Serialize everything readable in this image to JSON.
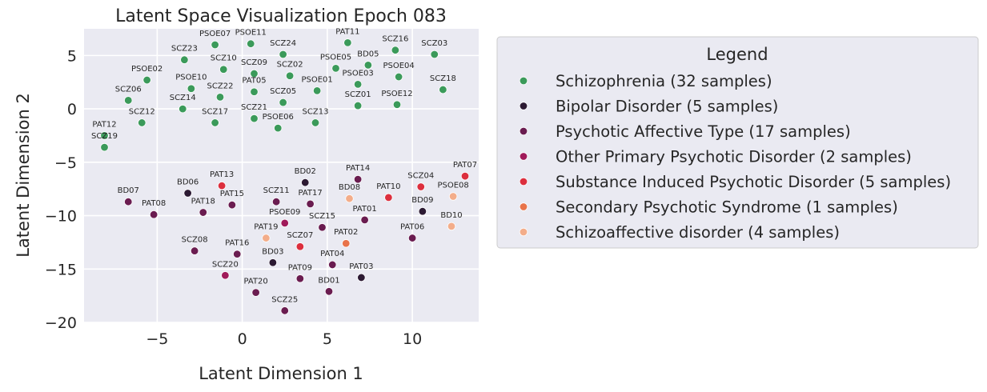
{
  "chart_data": {
    "type": "scatter",
    "title": "Latent Space Visualization Epoch 083",
    "xlabel": "Latent Dimension 1",
    "ylabel": "Latent Dimension 2",
    "xlim": [
      -9.3,
      13.9
    ],
    "ylim": [
      -20,
      7.5
    ],
    "xticks": [
      -5,
      0,
      5,
      10
    ],
    "yticks": [
      -20,
      -15,
      -10,
      -5,
      0,
      5
    ],
    "grid": true,
    "legend": {
      "title": "Legend",
      "placement": "outside-right",
      "entries": [
        {
          "label": "Schizophrenia (32 samples)",
          "color": "#3b9a5a"
        },
        {
          "label": "Bipolar Disorder (5 samples)",
          "color": "#2c1a33"
        },
        {
          "label": "Psychotic Affective Type (17 samples)",
          "color": "#6a1c50"
        },
        {
          "label": "Other Primary Psychotic Disorder (2 samples)",
          "color": "#a01a5a"
        },
        {
          "label": "Substance Induced Psychotic Disorder (5 samples)",
          "color": "#dc2f3e"
        },
        {
          "label": "Secondary Psychotic Syndrome (1 samples)",
          "color": "#e8734a"
        },
        {
          "label": "Schizoaffective disorder (4 samples)",
          "color": "#f3ad8a"
        }
      ]
    },
    "series": [
      {
        "name": "Schizophrenia (32 samples)",
        "color": "#3b9a5a",
        "points": [
          {
            "label": "PSOE07",
            "x": -1.6,
            "y": 6.0
          },
          {
            "label": "PSOE11",
            "x": 0.5,
            "y": 6.1
          },
          {
            "label": "SCZ24",
            "x": 2.4,
            "y": 5.1
          },
          {
            "label": "PAT11",
            "x": 6.2,
            "y": 6.2
          },
          {
            "label": "SCZ16",
            "x": 9.0,
            "y": 5.5
          },
          {
            "label": "SCZ03",
            "x": 11.3,
            "y": 5.1
          },
          {
            "label": "SCZ23",
            "x": -3.4,
            "y": 4.6
          },
          {
            "label": "SCZ10",
            "x": -1.1,
            "y": 3.7
          },
          {
            "label": "SCZ09",
            "x": 0.7,
            "y": 3.3
          },
          {
            "label": "SCZ02",
            "x": 2.8,
            "y": 3.1
          },
          {
            "label": "PSOE05",
            "x": 5.5,
            "y": 3.8
          },
          {
            "label": "BD05",
            "x": 7.4,
            "y": 4.1
          },
          {
            "label": "PSOE04",
            "x": 9.2,
            "y": 3.0
          },
          {
            "label": "PSOE02",
            "x": -5.6,
            "y": 2.7
          },
          {
            "label": "PSOE10",
            "x": -3.0,
            "y": 1.9
          },
          {
            "label": "SCZ22",
            "x": -1.3,
            "y": 1.1
          },
          {
            "label": "PAT05",
            "x": 0.7,
            "y": 1.6
          },
          {
            "label": "PSOE01",
            "x": 4.4,
            "y": 1.7
          },
          {
            "label": "PSOE03",
            "x": 6.8,
            "y": 2.3
          },
          {
            "label": "SCZ18",
            "x": 11.8,
            "y": 1.8
          },
          {
            "label": "SCZ06",
            "x": -6.7,
            "y": 0.8
          },
          {
            "label": "SCZ14",
            "x": -3.5,
            "y": 0.0
          },
          {
            "label": "SCZ05",
            "x": 2.4,
            "y": 0.6
          },
          {
            "label": "SCZ01",
            "x": 6.8,
            "y": 0.3
          },
          {
            "label": "PSOE12",
            "x": 9.1,
            "y": 0.4
          },
          {
            "label": "SCZ12",
            "x": -5.9,
            "y": -1.3
          },
          {
            "label": "SCZ17",
            "x": -1.6,
            "y": -1.3
          },
          {
            "label": "SCZ21",
            "x": 0.7,
            "y": -0.9
          },
          {
            "label": "PSOE06",
            "x": 2.1,
            "y": -1.8
          },
          {
            "label": "SCZ13",
            "x": 4.3,
            "y": -1.3
          },
          {
            "label": "PAT12",
            "x": -8.1,
            "y": -2.5
          },
          {
            "label": "SCZ19",
            "x": -8.1,
            "y": -3.6
          }
        ]
      },
      {
        "name": "Bipolar Disorder (5 samples)",
        "color": "#2c1a33",
        "points": [
          {
            "label": "BD06",
            "x": -3.2,
            "y": -7.9
          },
          {
            "label": "BD02",
            "x": 3.7,
            "y": -6.9
          },
          {
            "label": "BD09",
            "x": 10.6,
            "y": -9.6
          },
          {
            "label": "BD03",
            "x": 1.8,
            "y": -14.4
          },
          {
            "label": "PAT03",
            "x": 7.0,
            "y": -15.8
          }
        ]
      },
      {
        "name": "Psychotic Affective Type (17 samples)",
        "color": "#6a1c50",
        "points": [
          {
            "label": "BD07",
            "x": -6.7,
            "y": -8.7
          },
          {
            "label": "PAT08",
            "x": -5.2,
            "y": -9.9
          },
          {
            "label": "PAT18",
            "x": -2.3,
            "y": -9.7
          },
          {
            "label": "PAT15",
            "x": -0.6,
            "y": -9.0
          },
          {
            "label": "SCZ11",
            "x": 2.0,
            "y": -8.7
          },
          {
            "label": "PAT17",
            "x": 4.0,
            "y": -8.9
          },
          {
            "label": "PAT14",
            "x": 6.8,
            "y": -6.6
          },
          {
            "label": "PAT01",
            "x": 7.2,
            "y": -10.4
          },
          {
            "label": "SCZ15",
            "x": 4.7,
            "y": -11.1
          },
          {
            "label": "PAT06",
            "x": 10.0,
            "y": -12.1
          },
          {
            "label": "SCZ08",
            "x": -2.8,
            "y": -13.3
          },
          {
            "label": "PAT16",
            "x": -0.3,
            "y": -13.6
          },
          {
            "label": "PAT04",
            "x": 5.3,
            "y": -14.6
          },
          {
            "label": "PAT09",
            "x": 3.4,
            "y": -15.9
          },
          {
            "label": "BD01",
            "x": 5.1,
            "y": -17.1
          },
          {
            "label": "PAT20",
            "x": 0.8,
            "y": -17.2
          },
          {
            "label": "SCZ25",
            "x": 2.5,
            "y": -18.9
          }
        ]
      },
      {
        "name": "Other Primary Psychotic Disorder (2 samples)",
        "color": "#a01a5a",
        "points": [
          {
            "label": "PSOE09",
            "x": 2.5,
            "y": -10.7
          },
          {
            "label": "SCZ20",
            "x": -1.0,
            "y": -15.6
          }
        ]
      },
      {
        "name": "Substance Induced Psychotic Disorder (5 samples)",
        "color": "#dc2f3e",
        "points": [
          {
            "label": "PAT13",
            "x": -1.2,
            "y": -7.2
          },
          {
            "label": "PAT10",
            "x": 8.6,
            "y": -8.3
          },
          {
            "label": "SCZ04",
            "x": 10.5,
            "y": -7.3
          },
          {
            "label": "PAT07",
            "x": 13.1,
            "y": -6.3
          },
          {
            "label": "SCZ07",
            "x": 3.4,
            "y": -12.9
          }
        ]
      },
      {
        "name": "Secondary Psychotic Syndrome (1 samples)",
        "color": "#e8734a",
        "points": [
          {
            "label": "PAT02",
            "x": 6.1,
            "y": -12.6
          }
        ]
      },
      {
        "name": "Schizoaffective disorder (4 samples)",
        "color": "#f3ad8a",
        "points": [
          {
            "label": "BD08",
            "x": 6.3,
            "y": -8.4
          },
          {
            "label": "PSOE08",
            "x": 12.4,
            "y": -8.2
          },
          {
            "label": "PAT19",
            "x": 1.4,
            "y": -12.1
          },
          {
            "label": "BD10",
            "x": 12.3,
            "y": -11.0
          }
        ]
      }
    ]
  }
}
